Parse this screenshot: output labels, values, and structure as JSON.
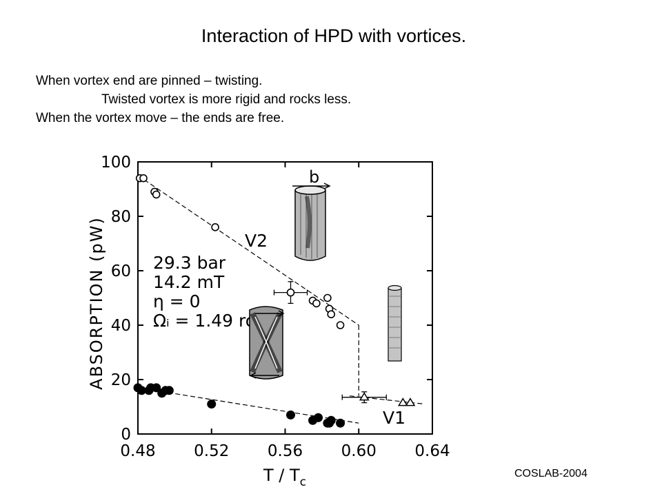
{
  "slide": {
    "title": "Interaction of HPD with vortices.",
    "lines": [
      "When vortex end are pinned – twisting.",
      "Twisted vortex is more rigid and rocks less.",
      "When the vortex move – the ends are free."
    ],
    "footer": "COSLAB-2004"
  },
  "chart_data": {
    "type": "scatter",
    "xlabel": "T / T",
    "xlabel_subscript": "c",
    "ylabel": "ABSORPTION (pW)",
    "xlim": [
      0.48,
      0.64
    ],
    "ylim": [
      0,
      100
    ],
    "x_ticks": [
      "0.48",
      "0.52",
      "0.56",
      "0.60",
      "0.64"
    ],
    "y_ticks": [
      "0",
      "20",
      "40",
      "60",
      "80",
      "100"
    ],
    "conditions": [
      "29.3 bar",
      "14.2 mT",
      "η = 0",
      "Ωᵢ = 1.49 ro"
    ],
    "line_labels": {
      "v2": "V2",
      "v1": "V1"
    },
    "vortex_label": "b",
    "series": [
      {
        "name": "V2",
        "marker": "open-circle",
        "points": [
          [
            0.481,
            94
          ],
          [
            0.483,
            94
          ],
          [
            0.489,
            89
          ],
          [
            0.49,
            88
          ],
          [
            0.522,
            76
          ],
          [
            0.563,
            52
          ],
          [
            0.575,
            49
          ],
          [
            0.577,
            48
          ],
          [
            0.583,
            50
          ],
          [
            0.584,
            46
          ],
          [
            0.585,
            44
          ],
          [
            0.59,
            40
          ]
        ]
      },
      {
        "name": "",
        "marker": "filled-circle",
        "points": [
          [
            0.48,
            17
          ],
          [
            0.482,
            16
          ],
          [
            0.486,
            16
          ],
          [
            0.487,
            17
          ],
          [
            0.49,
            17
          ],
          [
            0.493,
            15
          ],
          [
            0.495,
            16
          ],
          [
            0.497,
            16
          ],
          [
            0.52,
            11
          ],
          [
            0.563,
            7
          ],
          [
            0.575,
            5
          ],
          [
            0.578,
            6
          ],
          [
            0.583,
            4
          ],
          [
            0.584,
            4
          ],
          [
            0.585,
            5
          ],
          [
            0.59,
            4
          ]
        ]
      },
      {
        "name": "V1",
        "marker": "open-triangle",
        "points": [
          [
            0.603,
            13.5
          ],
          [
            0.624,
            11.5
          ],
          [
            0.628,
            11.5
          ]
        ]
      }
    ],
    "error_bars": [
      {
        "x": 0.563,
        "y": 52,
        "xerr": 0.009,
        "yerr": 4
      },
      {
        "x": 0.603,
        "y": 13.5,
        "xerr": 0.012,
        "yerr": 2
      }
    ],
    "fit_lines": [
      {
        "name": "V2",
        "style": "dashed",
        "points": [
          [
            0.48,
            95
          ],
          [
            0.6,
            40
          ]
        ]
      },
      {
        "name": "",
        "style": "dashed",
        "points": [
          [
            0.48,
            17
          ],
          [
            0.6,
            4
          ]
        ]
      },
      {
        "name": "V1",
        "style": "dashed",
        "points": [
          [
            0.595,
            14
          ],
          [
            0.636,
            11
          ]
        ]
      },
      {
        "name": "",
        "style": "dashed",
        "points": [
          [
            0.6,
            40
          ],
          [
            0.6,
            14
          ]
        ]
      }
    ]
  }
}
